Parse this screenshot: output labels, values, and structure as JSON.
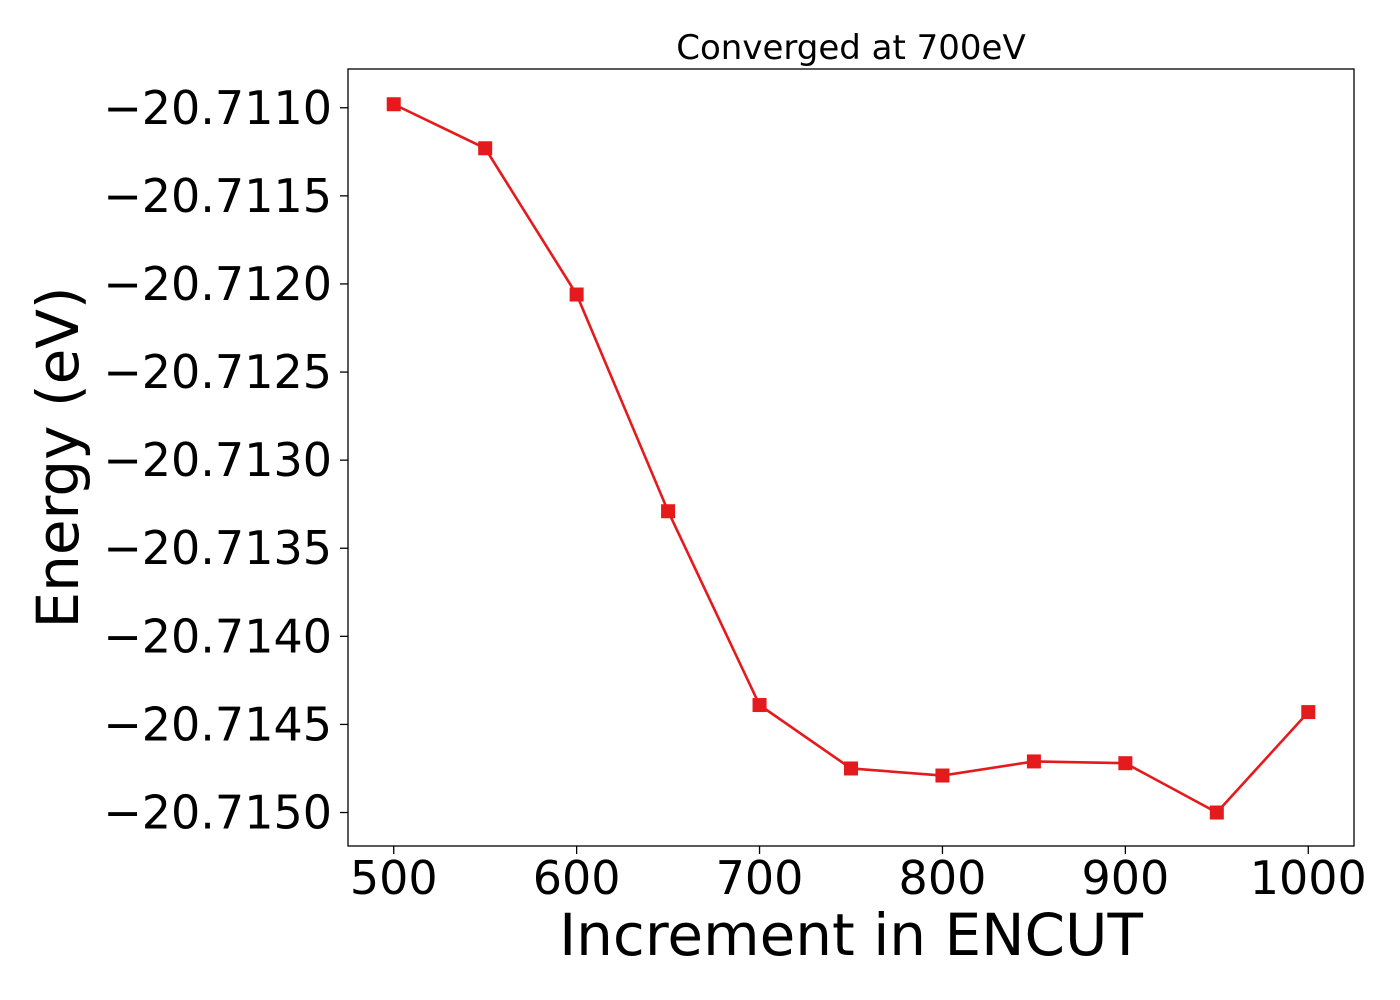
{
  "chart_data": {
    "type": "line",
    "title": "Converged at 700eV",
    "xlabel": "Increment in ENCUT",
    "ylabel": "Energy (eV)",
    "x": [
      500,
      550,
      600,
      650,
      700,
      750,
      800,
      850,
      900,
      950,
      1000
    ],
    "series": [
      {
        "values": [
          -20.71098,
          -20.71123,
          -20.71206,
          -20.71329,
          -20.71439,
          -20.71475,
          -20.71479,
          -20.71471,
          -20.71472,
          -20.715,
          -20.71443
        ],
        "color": "#e41a1c",
        "marker": "square"
      }
    ],
    "xticks": [
      500,
      600,
      700,
      800,
      900,
      1000
    ],
    "xtick_labels": [
      "500",
      "600",
      "700",
      "800",
      "900",
      "1000"
    ],
    "yticks": [
      -20.711,
      -20.7115,
      -20.712,
      -20.7125,
      -20.713,
      -20.7135,
      -20.714,
      -20.7145,
      -20.715
    ],
    "ytick_labels": [
      "−20.7110",
      "−20.7115",
      "−20.7120",
      "−20.7125",
      "−20.7130",
      "−20.7135",
      "−20.7140",
      "−20.7145",
      "−20.7150"
    ],
    "xlim": [
      475,
      1025
    ],
    "ylim": [
      -20.71519,
      -20.71078
    ],
    "grid": false,
    "legend": "none"
  }
}
